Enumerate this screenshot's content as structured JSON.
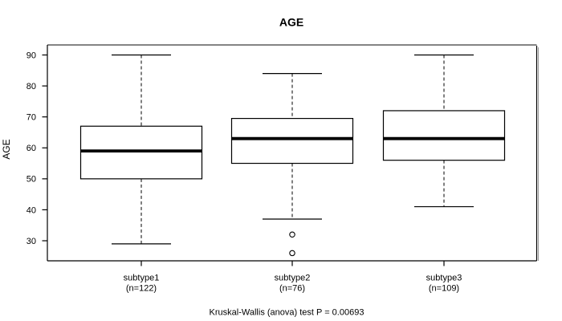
{
  "chart_data": {
    "type": "boxplot",
    "title": "AGE",
    "ylabel": "AGE",
    "footnote": "Kruskal-Wallis (anova) test P = 0.00693",
    "yticks": [
      90,
      80,
      70,
      60,
      50,
      40,
      30
    ],
    "ylim": [
      24,
      93
    ],
    "grid": false,
    "groups": [
      {
        "label": "subtype1",
        "sublabel": "(n=122)",
        "stats": {
          "whisker_low": 29,
          "q1": 50,
          "median": 59,
          "q3": 67,
          "whisker_high": 90
        },
        "outliers": []
      },
      {
        "label": "subtype2",
        "sublabel": "(n=76)",
        "stats": {
          "whisker_low": 37,
          "q1": 55,
          "median": 63,
          "q3": 69.5,
          "whisker_high": 84
        },
        "outliers": [
          32,
          26
        ]
      },
      {
        "label": "subtype3",
        "sublabel": "(n=109)",
        "stats": {
          "whisker_low": 41,
          "q1": 56,
          "median": 63,
          "q3": 72,
          "whisker_high": 90
        },
        "outliers": []
      }
    ],
    "colors": {
      "line": "#000000",
      "box_fill": "#ffffff",
      "frame_top": "#848484",
      "frame_shadow": "#9a9a9a",
      "background": "#ffffff"
    }
  }
}
